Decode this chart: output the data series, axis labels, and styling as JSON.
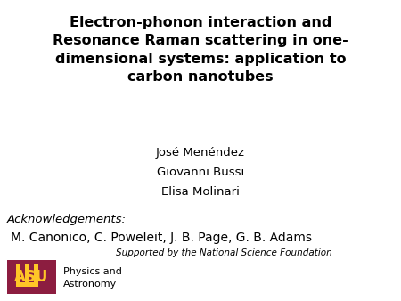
{
  "title": "Electron-phonon interaction and\nResonance Raman scattering in one-\ndimensional systems: application to\ncarbon nanotubes",
  "authors": [
    "José Menéndez",
    "Giovanni Bussi",
    "Elisa Molinari"
  ],
  "acknowledgements_label": "Acknowledgements:",
  "acknowledgements_names": "M. Canonico, C. Poweleit, J. B. Page, G. B. Adams",
  "supported_by": "Supported by the National Science Foundation",
  "dept": "Physics and\nAstronomy",
  "bg_color": "#ffffff",
  "title_fontsize": 11.5,
  "author_fontsize": 9.5,
  "ack_label_fontsize": 9.5,
  "ack_names_fontsize": 10,
  "support_fontsize": 7.5,
  "dept_fontsize": 8,
  "maroon": "#8C1D40",
  "gold": "#FFC627"
}
